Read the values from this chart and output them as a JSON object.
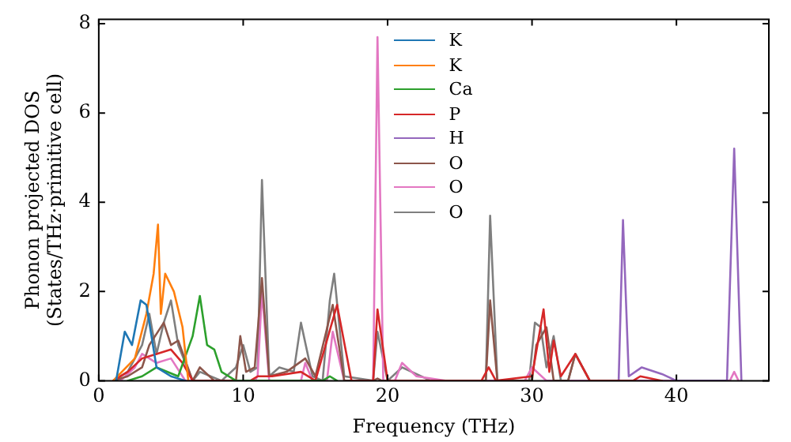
{
  "chart_data": {
    "type": "line",
    "xlabel": "Frequency (THz)",
    "ylabel": "Phonon projected DOS\n(States/THz·primitive cell)",
    "xlim": [
      0,
      46.4
    ],
    "ylim": [
      0,
      8.1
    ],
    "xticks": [
      0,
      10,
      20,
      30,
      40
    ],
    "yticks": [
      0,
      2,
      4,
      6,
      8
    ],
    "grid": false,
    "legend": "top",
    "marker": "none",
    "line_style": "solid",
    "series": [
      {
        "name": "K",
        "color": "#1f77b4",
        "x": [
          1.2,
          1.8,
          2.3,
          2.9,
          3.3,
          4,
          5,
          6
        ],
        "values": [
          0,
          1.1,
          0.8,
          1.8,
          1.7,
          0.3,
          0.1,
          0
        ]
      },
      {
        "name": "K",
        "color": "#ff7f0e",
        "x": [
          1,
          2.5,
          3.3,
          3.8,
          4.1,
          4.3,
          4.6,
          5.2,
          5.8,
          6.2
        ],
        "values": [
          0,
          0.5,
          1.5,
          2.4,
          3.5,
          1.5,
          2.4,
          2.0,
          1.2,
          0
        ]
      },
      {
        "name": "Ca",
        "color": "#2ca02c",
        "x": [
          2,
          3,
          4,
          5.5,
          6.5,
          7,
          7.5,
          8,
          8.5,
          9.5,
          15.5,
          16,
          16.5
        ],
        "values": [
          0,
          0.1,
          0.3,
          0.1,
          1.0,
          1.9,
          0.8,
          0.7,
          0.2,
          0,
          0,
          0.1,
          0
        ]
      },
      {
        "name": "P",
        "color": "#d62728",
        "x": [
          1,
          2,
          3,
          4,
          5,
          5.8,
          6.5,
          10.5,
          11,
          12,
          14,
          15,
          16.5,
          17.5,
          19,
          19.3,
          20,
          26.5,
          27,
          27.5,
          30,
          30.8,
          31.2,
          31.5,
          32,
          33,
          34,
          37,
          37.5,
          39
        ],
        "values": [
          0,
          0.2,
          0.5,
          0.6,
          0.7,
          0.4,
          0,
          0,
          0.1,
          0.1,
          0.2,
          0,
          1.7,
          0,
          0,
          1.6,
          0,
          0,
          0.3,
          0,
          0.1,
          1.6,
          0.2,
          0.9,
          0.1,
          0.6,
          0,
          0,
          0.1,
          0
        ]
      },
      {
        "name": "H",
        "color": "#9467bd",
        "x": [
          36,
          36.3,
          36.7,
          37.6,
          39,
          40,
          43.5,
          44,
          44.5
        ],
        "values": [
          0,
          3.6,
          0.1,
          0.3,
          0.15,
          0,
          0,
          5.2,
          0
        ]
      },
      {
        "name": "O",
        "color": "#8c564b",
        "x": [
          1,
          2,
          3,
          3.5,
          4.5,
          5,
          5.5,
          6.5,
          7,
          8,
          9.5,
          9.8,
          10.2,
          10.8,
          11.3,
          11.8,
          13,
          14.3,
          15,
          16.2,
          17,
          19,
          19.3,
          19.6,
          26.8,
          27.1,
          27.6,
          30,
          30.3,
          31,
          31.5,
          32.5,
          33,
          34
        ],
        "values": [
          0,
          0.1,
          0.3,
          0.8,
          1.3,
          0.8,
          0.9,
          0,
          0.3,
          0,
          0,
          1.0,
          0.2,
          0.3,
          2.3,
          0.1,
          0.2,
          0.5,
          0.1,
          1.7,
          0,
          0,
          0.05,
          0,
          0,
          1.8,
          0,
          0,
          0.8,
          1.2,
          0,
          0,
          0.6,
          0
        ]
      },
      {
        "name": "O",
        "color": "#e377c2",
        "x": [
          1.5,
          2.5,
          3,
          4,
          5,
          6,
          10.8,
          11,
          11.3,
          11.8,
          14,
          14.3,
          14.8,
          15.8,
          16.2,
          17,
          19,
          19.3,
          19.7,
          20.5,
          21,
          22,
          24,
          29.5,
          30,
          31,
          43.7,
          44,
          44.3
        ],
        "values": [
          0,
          0.3,
          0.6,
          0.4,
          0.5,
          0,
          0,
          0.1,
          2.0,
          0,
          0,
          0.4,
          0,
          0,
          1.1,
          0,
          0,
          7.7,
          0,
          0,
          0.4,
          0.1,
          0,
          0,
          0.3,
          0,
          0,
          0.2,
          0
        ]
      },
      {
        "name": "O",
        "color": "#7f7f7f",
        "x": [
          1,
          2,
          3,
          3.5,
          4,
          4.5,
          5,
          5.5,
          6.5,
          7,
          8.5,
          9.5,
          10,
          10.5,
          11,
          11.3,
          11.8,
          12.5,
          13.5,
          14,
          14.8,
          15.5,
          16,
          16.3,
          17,
          19,
          19.3,
          20,
          21,
          23,
          26.8,
          27.1,
          27.6,
          29.8,
          30.2,
          30.6,
          31,
          31.5,
          32,
          32.5,
          33,
          34
        ],
        "values": [
          0,
          0.2,
          0.8,
          1.5,
          0.6,
          1.3,
          1.8,
          0.8,
          0,
          0.2,
          0,
          0.3,
          0.8,
          0.2,
          0.3,
          4.5,
          0.1,
          0.3,
          0.2,
          1.3,
          0.1,
          0,
          1.8,
          2.4,
          0.1,
          0,
          1.1,
          0,
          0.3,
          0,
          0,
          3.7,
          0,
          0,
          1.3,
          1.2,
          0.3,
          1.0,
          0,
          0,
          0.6,
          0
        ]
      }
    ]
  }
}
